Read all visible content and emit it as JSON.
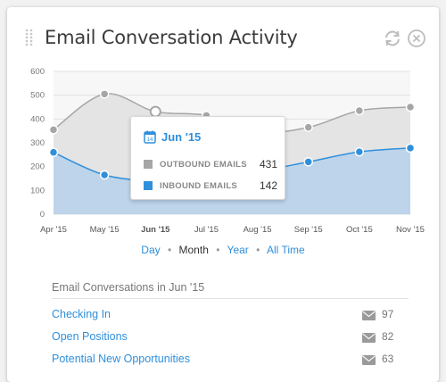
{
  "widget": {
    "title": "Email Conversation Activity"
  },
  "icons": {
    "drag": "drag-handle-icon",
    "refresh": "refresh-icon",
    "close": "close-circle-icon"
  },
  "colors": {
    "outbound": "#a6a6a6",
    "inbound": "#2f8fdb",
    "inbound_fill": "#bdd4ea",
    "outbound_fill": "#e4e4e4",
    "link": "#2f8fdb"
  },
  "chart_data": {
    "type": "area",
    "categories": [
      "Apr '15",
      "May '15",
      "Jun '15",
      "Jul '15",
      "Aug '15",
      "Sep '15",
      "Oct '15",
      "Nov '15"
    ],
    "series": [
      {
        "name": "Outbound Emails",
        "values": [
          355,
          505,
          431,
          415,
          345,
          365,
          435,
          450
        ]
      },
      {
        "name": "Inbound Emails",
        "values": [
          260,
          165,
          142,
          160,
          180,
          220,
          262,
          278
        ]
      }
    ],
    "ylim": [
      0,
      600
    ],
    "yticks": [
      "0",
      "100",
      "200",
      "300",
      "400",
      "500",
      "600"
    ],
    "grid": true
  },
  "tooltip": {
    "date": "Jun '15",
    "rows": [
      {
        "label": "OUTBOUND EMAILS",
        "value": "431"
      },
      {
        "label": "INBOUND EMAILS",
        "value": "142"
      }
    ]
  },
  "range": {
    "options": [
      "Day",
      "Month",
      "Year",
      "All Time"
    ],
    "active": "Month",
    "separator": "•"
  },
  "conversations": {
    "heading": "Email Conversations in Jun '15",
    "items": [
      {
        "label": "Checking In",
        "count": "97"
      },
      {
        "label": "Open Positions",
        "count": "82"
      },
      {
        "label": "Potential New Opportunities",
        "count": "63"
      }
    ]
  }
}
